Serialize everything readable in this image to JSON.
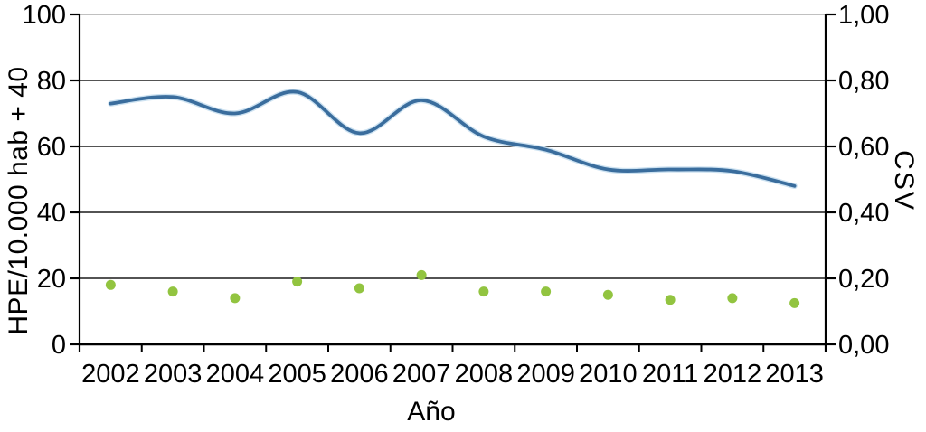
{
  "chart_data": {
    "type": "line",
    "title": "",
    "categories": [
      "2002",
      "2003",
      "2004",
      "2005",
      "2006",
      "2007",
      "2008",
      "2009",
      "2010",
      "2011",
      "2012",
      "2013"
    ],
    "series": [
      {
        "name": "HPE/10.000 hab + 40",
        "type": "line",
        "axis": "left",
        "color": "#3a6d9d",
        "values": [
          73,
          75,
          70,
          76.5,
          64,
          74,
          63,
          59,
          53,
          53,
          52.5,
          48
        ]
      },
      {
        "name": "CSV",
        "type": "scatter",
        "axis": "right",
        "color": "#92c440",
        "values": [
          0.18,
          0.16,
          0.14,
          0.19,
          0.17,
          0.21,
          0.16,
          0.16,
          0.15,
          0.135,
          0.14,
          0.125
        ]
      }
    ],
    "axes": {
      "left": {
        "label": "HPE/10.000 hab + 40",
        "min": 0,
        "max": 100,
        "ticks": [
          "0",
          "20",
          "40",
          "60",
          "80",
          "100"
        ]
      },
      "right": {
        "label": "CSV",
        "min": 0,
        "max": 1,
        "ticks": [
          "0,00",
          "0,20",
          "0,40",
          "0,60",
          "0,80",
          "1,00"
        ]
      },
      "x": {
        "label": "Año",
        "tick_style": "boundary"
      }
    },
    "grid": true,
    "legend": "none",
    "background": "#ffffff"
  },
  "colors": {
    "line": "#3a6d9d",
    "line_halo": "#cde2f1",
    "dots": "#92c440",
    "grid": "#1a1a1a",
    "axis": "#000000",
    "top_border": "#9a9a9a",
    "text": "#000000"
  }
}
